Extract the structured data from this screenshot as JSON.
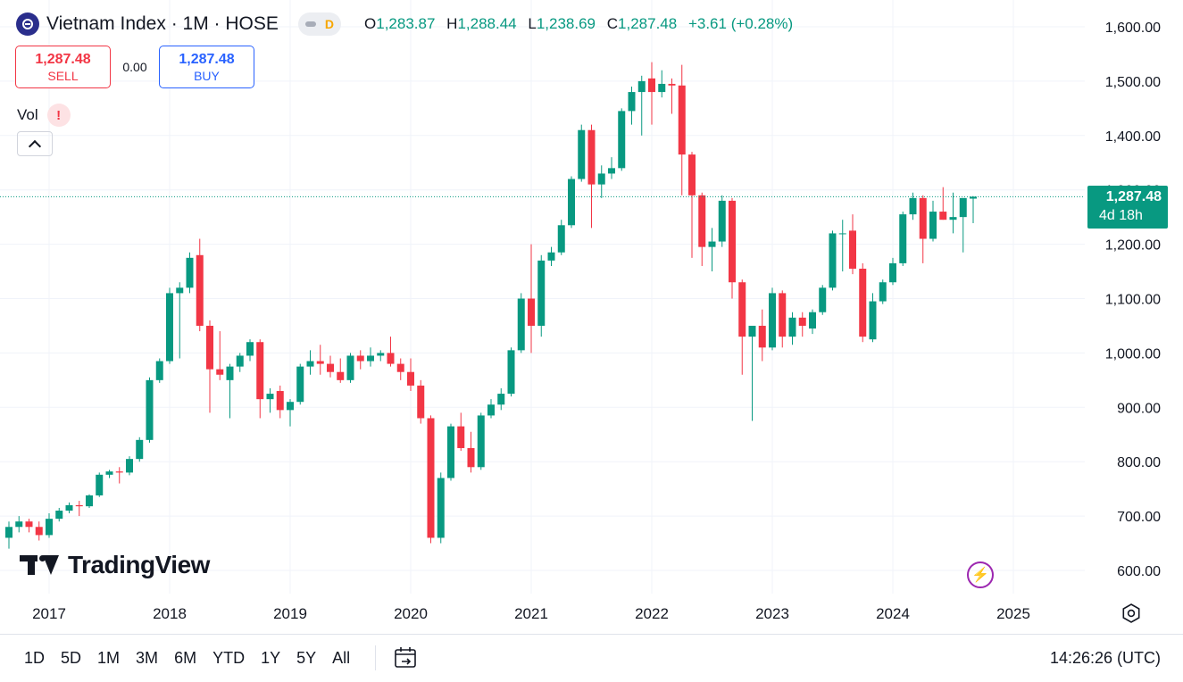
{
  "header": {
    "title": "Vietnam Index · 1M · HOSE",
    "badge": "D",
    "ohlc": {
      "o_label": "O",
      "o": "1,283.87",
      "h_label": "H",
      "h": "1,288.44",
      "l_label": "L",
      "l": "1,238.69",
      "c_label": "C",
      "c": "1,287.48",
      "change": "+3.61 (+0.28%)"
    }
  },
  "trade": {
    "sell_price": "1,287.48",
    "sell_label": "SELL",
    "spread": "0.00",
    "buy_price": "1,287.48",
    "buy_label": "BUY"
  },
  "indicator": {
    "label": "Vol",
    "warning": "!"
  },
  "price_tag": {
    "value": "1,287.48",
    "countdown": "4d 18h"
  },
  "brand": "TradingView",
  "ranges": [
    "1D",
    "5D",
    "1M",
    "3M",
    "6M",
    "YTD",
    "1Y",
    "5Y",
    "All"
  ],
  "clock": "14:26:26 (UTC)",
  "colors": {
    "up": "#089981",
    "down": "#f23645",
    "grid": "#f0f3fa",
    "text": "#131722",
    "accent": "#2962ff"
  },
  "icons": {
    "symbol": "vn-index-icon",
    "calendar": "calendar-range-icon",
    "settings": "settings-gear-icon",
    "bolt": "lightning-icon",
    "collapse": "chevron-up-icon"
  },
  "chart_data": {
    "type": "candlestick",
    "interval": "1M",
    "y_ticks": [
      "1,600.00",
      "1,500.00",
      "1,400.00",
      "1,300.00",
      "1,200.00",
      "1,100.00",
      "1,000.00",
      "900.00",
      "800.00",
      "700.00",
      "600.00"
    ],
    "x_ticks": [
      "2017",
      "2018",
      "2019",
      "2020",
      "2021",
      "2022",
      "2023",
      "2024",
      "2025"
    ],
    "ylim": [
      530,
      1640
    ],
    "last_price": 1287.48,
    "candles": [
      {
        "t": "2016-09",
        "o": 660,
        "h": 690,
        "l": 640,
        "c": 680
      },
      {
        "t": "2016-10",
        "o": 680,
        "h": 700,
        "l": 670,
        "c": 690
      },
      {
        "t": "2016-11",
        "o": 690,
        "h": 695,
        "l": 670,
        "c": 680
      },
      {
        "t": "2016-12",
        "o": 680,
        "h": 690,
        "l": 655,
        "c": 665
      },
      {
        "t": "2017-01",
        "o": 665,
        "h": 705,
        "l": 660,
        "c": 695
      },
      {
        "t": "2017-02",
        "o": 695,
        "h": 715,
        "l": 690,
        "c": 710
      },
      {
        "t": "2017-03",
        "o": 710,
        "h": 725,
        "l": 705,
        "c": 720
      },
      {
        "t": "2017-04",
        "o": 720,
        "h": 728,
        "l": 700,
        "c": 718
      },
      {
        "t": "2017-05",
        "o": 718,
        "h": 740,
        "l": 715,
        "c": 738
      },
      {
        "t": "2017-06",
        "o": 738,
        "h": 780,
        "l": 735,
        "c": 776
      },
      {
        "t": "2017-07",
        "o": 776,
        "h": 785,
        "l": 770,
        "c": 782
      },
      {
        "t": "2017-08",
        "o": 782,
        "h": 790,
        "l": 760,
        "c": 780
      },
      {
        "t": "2017-09",
        "o": 780,
        "h": 810,
        "l": 775,
        "c": 805
      },
      {
        "t": "2017-10",
        "o": 805,
        "h": 845,
        "l": 800,
        "c": 840
      },
      {
        "t": "2017-11",
        "o": 840,
        "h": 955,
        "l": 835,
        "c": 950
      },
      {
        "t": "2017-12",
        "o": 950,
        "h": 990,
        "l": 945,
        "c": 985
      },
      {
        "t": "2018-01",
        "o": 985,
        "h": 1120,
        "l": 980,
        "c": 1110
      },
      {
        "t": "2018-02",
        "o": 1110,
        "h": 1130,
        "l": 990,
        "c": 1120
      },
      {
        "t": "2018-03",
        "o": 1120,
        "h": 1185,
        "l": 1110,
        "c": 1175
      },
      {
        "t": "2018-04",
        "o": 1180,
        "h": 1210,
        "l": 1040,
        "c": 1050
      },
      {
        "t": "2018-05",
        "o": 1050,
        "h": 1060,
        "l": 890,
        "c": 970
      },
      {
        "t": "2018-06",
        "o": 970,
        "h": 1040,
        "l": 950,
        "c": 960
      },
      {
        "t": "2018-07",
        "o": 950,
        "h": 980,
        "l": 880,
        "c": 975
      },
      {
        "t": "2018-08",
        "o": 975,
        "h": 1000,
        "l": 965,
        "c": 995
      },
      {
        "t": "2018-09",
        "o": 995,
        "h": 1025,
        "l": 985,
        "c": 1020
      },
      {
        "t": "2018-10",
        "o": 1020,
        "h": 1025,
        "l": 880,
        "c": 915
      },
      {
        "t": "2018-11",
        "o": 915,
        "h": 935,
        "l": 890,
        "c": 925
      },
      {
        "t": "2018-12",
        "o": 930,
        "h": 940,
        "l": 880,
        "c": 895
      },
      {
        "t": "2019-01",
        "o": 895,
        "h": 915,
        "l": 865,
        "c": 910
      },
      {
        "t": "2019-02",
        "o": 910,
        "h": 980,
        "l": 905,
        "c": 975
      },
      {
        "t": "2019-03",
        "o": 975,
        "h": 1005,
        "l": 960,
        "c": 985
      },
      {
        "t": "2019-04",
        "o": 985,
        "h": 1015,
        "l": 960,
        "c": 980
      },
      {
        "t": "2019-05",
        "o": 980,
        "h": 995,
        "l": 955,
        "c": 965
      },
      {
        "t": "2019-06",
        "o": 965,
        "h": 990,
        "l": 945,
        "c": 950
      },
      {
        "t": "2019-07",
        "o": 950,
        "h": 1000,
        "l": 945,
        "c": 995
      },
      {
        "t": "2019-08",
        "o": 995,
        "h": 1005,
        "l": 970,
        "c": 985
      },
      {
        "t": "2019-09",
        "o": 985,
        "h": 1010,
        "l": 975,
        "c": 995
      },
      {
        "t": "2019-10",
        "o": 995,
        "h": 1005,
        "l": 985,
        "c": 1000
      },
      {
        "t": "2019-11",
        "o": 1000,
        "h": 1030,
        "l": 975,
        "c": 980
      },
      {
        "t": "2019-12",
        "o": 980,
        "h": 990,
        "l": 950,
        "c": 965
      },
      {
        "t": "2020-01",
        "o": 965,
        "h": 990,
        "l": 930,
        "c": 940
      },
      {
        "t": "2020-02",
        "o": 940,
        "h": 950,
        "l": 870,
        "c": 880
      },
      {
        "t": "2020-03",
        "o": 880,
        "h": 885,
        "l": 650,
        "c": 660
      },
      {
        "t": "2020-04",
        "o": 660,
        "h": 780,
        "l": 650,
        "c": 770
      },
      {
        "t": "2020-05",
        "o": 770,
        "h": 870,
        "l": 765,
        "c": 865
      },
      {
        "t": "2020-06",
        "o": 865,
        "h": 890,
        "l": 820,
        "c": 825
      },
      {
        "t": "2020-07",
        "o": 825,
        "h": 855,
        "l": 780,
        "c": 790
      },
      {
        "t": "2020-08",
        "o": 790,
        "h": 890,
        "l": 785,
        "c": 885
      },
      {
        "t": "2020-09",
        "o": 885,
        "h": 915,
        "l": 880,
        "c": 905
      },
      {
        "t": "2020-10",
        "o": 905,
        "h": 935,
        "l": 895,
        "c": 925
      },
      {
        "t": "2020-11",
        "o": 925,
        "h": 1010,
        "l": 920,
        "c": 1005
      },
      {
        "t": "2020-12",
        "o": 1005,
        "h": 1110,
        "l": 1000,
        "c": 1100
      },
      {
        "t": "2021-01",
        "o": 1100,
        "h": 1200,
        "l": 1000,
        "c": 1050
      },
      {
        "t": "2021-02",
        "o": 1050,
        "h": 1180,
        "l": 1030,
        "c": 1170
      },
      {
        "t": "2021-03",
        "o": 1170,
        "h": 1195,
        "l": 1160,
        "c": 1185
      },
      {
        "t": "2021-04",
        "o": 1185,
        "h": 1245,
        "l": 1180,
        "c": 1235
      },
      {
        "t": "2021-05",
        "o": 1235,
        "h": 1325,
        "l": 1230,
        "c": 1320
      },
      {
        "t": "2021-06",
        "o": 1320,
        "h": 1420,
        "l": 1315,
        "c": 1410
      },
      {
        "t": "2021-07",
        "o": 1410,
        "h": 1420,
        "l": 1230,
        "c": 1310
      },
      {
        "t": "2021-08",
        "o": 1310,
        "h": 1345,
        "l": 1285,
        "c": 1330
      },
      {
        "t": "2021-09",
        "o": 1330,
        "h": 1360,
        "l": 1320,
        "c": 1340
      },
      {
        "t": "2021-10",
        "o": 1340,
        "h": 1450,
        "l": 1335,
        "c": 1445
      },
      {
        "t": "2021-11",
        "o": 1445,
        "h": 1490,
        "l": 1420,
        "c": 1480
      },
      {
        "t": "2021-12",
        "o": 1480,
        "h": 1510,
        "l": 1400,
        "c": 1500
      },
      {
        "t": "2022-01",
        "o": 1505,
        "h": 1535,
        "l": 1420,
        "c": 1480
      },
      {
        "t": "2022-02",
        "o": 1480,
        "h": 1520,
        "l": 1470,
        "c": 1495
      },
      {
        "t": "2022-03",
        "o": 1495,
        "h": 1505,
        "l": 1440,
        "c": 1492
      },
      {
        "t": "2022-04",
        "o": 1492,
        "h": 1530,
        "l": 1290,
        "c": 1365
      },
      {
        "t": "2022-05",
        "o": 1365,
        "h": 1370,
        "l": 1175,
        "c": 1290
      },
      {
        "t": "2022-06",
        "o": 1290,
        "h": 1295,
        "l": 1160,
        "c": 1195
      },
      {
        "t": "2022-07",
        "o": 1195,
        "h": 1230,
        "l": 1150,
        "c": 1205
      },
      {
        "t": "2022-08",
        "o": 1205,
        "h": 1290,
        "l": 1195,
        "c": 1280
      },
      {
        "t": "2022-09",
        "o": 1280,
        "h": 1285,
        "l": 1100,
        "c": 1130
      },
      {
        "t": "2022-10",
        "o": 1130,
        "h": 1135,
        "l": 960,
        "c": 1030
      },
      {
        "t": "2022-11",
        "o": 1030,
        "h": 1050,
        "l": 875,
        "c": 1050
      },
      {
        "t": "2022-12",
        "o": 1050,
        "h": 1080,
        "l": 985,
        "c": 1010
      },
      {
        "t": "2023-01",
        "o": 1010,
        "h": 1120,
        "l": 1005,
        "c": 1110
      },
      {
        "t": "2023-02",
        "o": 1110,
        "h": 1115,
        "l": 1010,
        "c": 1030
      },
      {
        "t": "2023-03",
        "o": 1030,
        "h": 1075,
        "l": 1015,
        "c": 1065
      },
      {
        "t": "2023-04",
        "o": 1065,
        "h": 1075,
        "l": 1030,
        "c": 1050
      },
      {
        "t": "2023-05",
        "o": 1045,
        "h": 1080,
        "l": 1035,
        "c": 1075
      },
      {
        "t": "2023-06",
        "o": 1075,
        "h": 1125,
        "l": 1070,
        "c": 1120
      },
      {
        "t": "2023-07",
        "o": 1120,
        "h": 1225,
        "l": 1115,
        "c": 1220
      },
      {
        "t": "2023-08",
        "o": 1220,
        "h": 1245,
        "l": 1150,
        "c": 1220
      },
      {
        "t": "2023-09",
        "o": 1225,
        "h": 1255,
        "l": 1145,
        "c": 1155
      },
      {
        "t": "2023-10",
        "o": 1155,
        "h": 1165,
        "l": 1020,
        "c": 1030
      },
      {
        "t": "2023-11",
        "o": 1025,
        "h": 1110,
        "l": 1020,
        "c": 1095
      },
      {
        "t": "2023-12",
        "o": 1095,
        "h": 1135,
        "l": 1090,
        "c": 1130
      },
      {
        "t": "2024-01",
        "o": 1130,
        "h": 1175,
        "l": 1125,
        "c": 1165
      },
      {
        "t": "2024-02",
        "o": 1165,
        "h": 1260,
        "l": 1160,
        "c": 1255
      },
      {
        "t": "2024-03",
        "o": 1255,
        "h": 1295,
        "l": 1245,
        "c": 1285
      },
      {
        "t": "2024-04",
        "o": 1285,
        "h": 1290,
        "l": 1165,
        "c": 1210
      },
      {
        "t": "2024-05",
        "o": 1210,
        "h": 1280,
        "l": 1205,
        "c": 1260
      },
      {
        "t": "2024-06",
        "o": 1260,
        "h": 1305,
        "l": 1245,
        "c": 1245
      },
      {
        "t": "2024-07",
        "o": 1245,
        "h": 1295,
        "l": 1220,
        "c": 1250
      },
      {
        "t": "2024-08",
        "o": 1250,
        "h": 1285,
        "l": 1185,
        "c": 1285
      },
      {
        "t": "2024-09",
        "o": 1283.87,
        "h": 1288.44,
        "l": 1238.69,
        "c": 1287.48
      }
    ]
  }
}
